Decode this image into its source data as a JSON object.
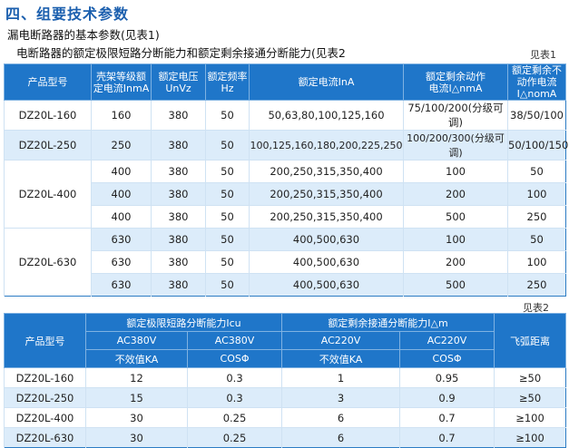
{
  "heading": "四、组要技术参数",
  "subtitle1": "漏电断路器的基本参数(见表1)",
  "subtitle2": "电断路器的额定极限短路分断能力和额定剩余接通分断能力(见表2",
  "table1": {
    "ref": "见表1",
    "headers": [
      [
        "产品型号"
      ],
      [
        "壳架等级额",
        "定电流InmA"
      ],
      [
        "额定电压",
        "UnVz"
      ],
      [
        "额定频率",
        "Hz"
      ],
      [
        "额定电流InA"
      ],
      [
        "额定剩余动作",
        "电流I△nmA"
      ],
      [
        "额定剩余不",
        "动作电流",
        "I△nomA"
      ]
    ],
    "models": [
      "DZ20L-160",
      "DZ20L-250",
      "DZ20L-400",
      "DZ20L-630"
    ],
    "rows": [
      [
        "160",
        "380",
        "50",
        "50,63,80,100,125,160",
        "75/100/200(分级可调)",
        "38/50/100"
      ],
      [
        "250",
        "380",
        "50",
        "100,125,160,180,200,225,250",
        "100/200/300(分级可调)",
        "50/100/150"
      ],
      [
        "400",
        "380",
        "50",
        "200,250,315,350,400",
        "100",
        "50"
      ],
      [
        "400",
        "380",
        "50",
        "200,250,315,350,400",
        "200",
        "100"
      ],
      [
        "400",
        "380",
        "50",
        "200,250,315,350,400",
        "500",
        "250"
      ],
      [
        "630",
        "380",
        "50",
        "400,500,630",
        "100",
        "50"
      ],
      [
        "630",
        "380",
        "50",
        "400,500,630",
        "200",
        "100"
      ],
      [
        "630",
        "380",
        "50",
        "400,500,630",
        "500",
        "250"
      ]
    ]
  },
  "table2": {
    "ref": "见表2",
    "model_header": "产品型号",
    "group1": "额定极限短路分断能力Icu",
    "group2": "额定剩余接通分断能力I△m",
    "arc_header": "飞弧距离",
    "sub1": [
      "AC380V",
      "AC380V",
      "AC220V",
      "AC220V"
    ],
    "sub2": [
      "不效值KA",
      "COSΦ",
      "不效值KA",
      "COSΦ"
    ],
    "rows": [
      [
        "DZ20L-160",
        "12",
        "0.3",
        "1",
        "0.95",
        "≥50"
      ],
      [
        "DZ20L-250",
        "15",
        "0.3",
        "3",
        "0.9",
        "≥50"
      ],
      [
        "DZ20L-400",
        "30",
        "0.25",
        "6",
        "0.7",
        "≥100"
      ],
      [
        "DZ20L-630",
        "30",
        "0.25",
        "6",
        "0.7",
        "≥100"
      ]
    ]
  },
  "colors": {
    "header_bg": "#1f76c9",
    "alt_row": "#dcecfa",
    "heading": "#1b5fae"
  }
}
